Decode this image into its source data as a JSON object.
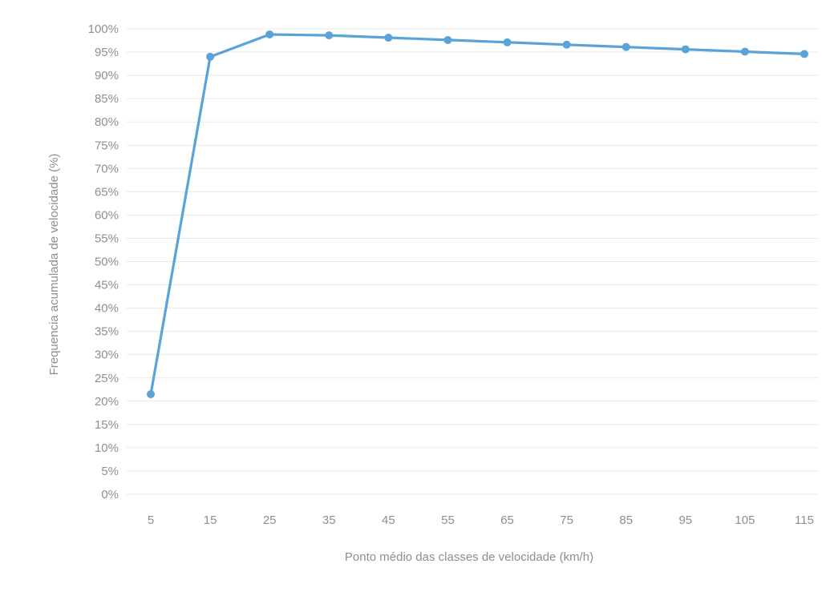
{
  "chart_data": {
    "type": "line",
    "title": "",
    "xlabel": "Ponto médio das classes de velocidade (km/h)",
    "ylabel": "Frequencia acumulada de velocidade (%)",
    "categories": [
      "5",
      "15",
      "25",
      "35",
      "45",
      "55",
      "65",
      "75",
      "85",
      "95",
      "105",
      "115"
    ],
    "y_ticks": [
      "0%",
      "5%",
      "10%",
      "15%",
      "20%",
      "25%",
      "30%",
      "35%",
      "40%",
      "45%",
      "50%",
      "55%",
      "60%",
      "65%",
      "70%",
      "75%",
      "80%",
      "85%",
      "90%",
      "95%",
      "100%"
    ],
    "ylim": [
      0,
      100
    ],
    "grid": true,
    "legend": "none",
    "series": [
      {
        "values": [
          21.5,
          94,
          98.8,
          98.6,
          98.1,
          97.6,
          97.1,
          96.6,
          96.1,
          95.6,
          95.1,
          94.6
        ],
        "color": "#5aa3d9"
      }
    ]
  }
}
